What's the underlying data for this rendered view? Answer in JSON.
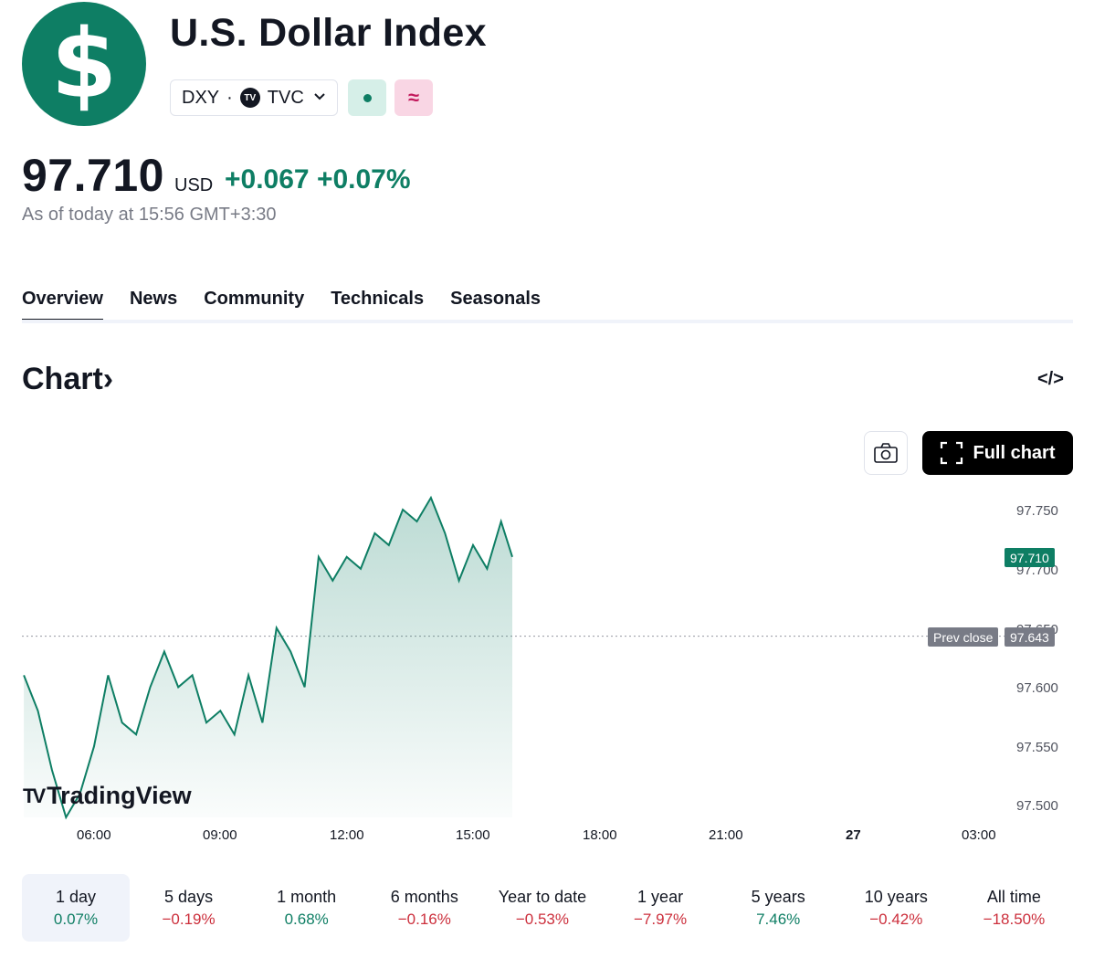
{
  "header": {
    "logo_symbol": "$",
    "title": "U.S. Dollar Index",
    "symbol": "DXY",
    "separator": "·",
    "exchange": "TVC",
    "exchange_logo": "TV",
    "brand_color": "#0e7e64"
  },
  "quote": {
    "price": "97.710",
    "currency": "USD",
    "change": "+0.067",
    "change_pct": "+0.07%",
    "as_of": "As of today at 15:56 GMT+3:30"
  },
  "tabs": [
    "Overview",
    "News",
    "Community",
    "Technicals",
    "Seasonals"
  ],
  "chart_section": {
    "title": "Chart",
    "full_chart_label": "Full chart",
    "watermark": "TradingView",
    "prev_close_label": "Prev close",
    "prev_close_value": "97.643",
    "current_value": "97.710"
  },
  "chart_data": {
    "type": "area",
    "x_labels": [
      "06:00",
      "09:00",
      "12:00",
      "15:00",
      "18:00",
      "21:00",
      "27",
      "03:00"
    ],
    "y_labels": [
      "97.750",
      "97.700",
      "97.650",
      "97.600",
      "97.550",
      "97.500"
    ],
    "ylim": [
      97.49,
      97.77
    ],
    "prev_close": 97.643,
    "line_color": "#0e7e64",
    "series": [
      {
        "x": [
          "04:20",
          "04:40",
          "05:00",
          "05:20",
          "05:40",
          "06:00",
          "06:20",
          "06:40",
          "07:00",
          "07:20",
          "07:40",
          "08:00",
          "08:20",
          "08:40",
          "09:00",
          "09:20",
          "09:40",
          "10:00",
          "10:20",
          "10:40",
          "11:00",
          "11:20",
          "11:40",
          "12:00",
          "12:20",
          "12:40",
          "13:00",
          "13:20",
          "13:40",
          "14:00",
          "14:20",
          "14:40",
          "15:00",
          "15:20",
          "15:40",
          "15:56"
        ],
        "values": [
          97.61,
          97.58,
          97.53,
          97.49,
          97.51,
          97.55,
          97.61,
          97.57,
          97.56,
          97.6,
          97.63,
          97.6,
          97.61,
          97.57,
          97.58,
          97.56,
          97.61,
          97.57,
          97.65,
          97.63,
          97.6,
          97.71,
          97.69,
          97.71,
          97.7,
          97.73,
          97.72,
          97.75,
          97.74,
          97.76,
          97.73,
          97.69,
          97.72,
          97.7,
          97.74,
          97.71
        ]
      }
    ]
  },
  "periods": [
    {
      "label": "1 day",
      "value": "0.07%",
      "dir": "up"
    },
    {
      "label": "5 days",
      "value": "−0.19%",
      "dir": "down"
    },
    {
      "label": "1 month",
      "value": "0.68%",
      "dir": "up"
    },
    {
      "label": "6 months",
      "value": "−0.16%",
      "dir": "down"
    },
    {
      "label": "Year to date",
      "value": "−0.53%",
      "dir": "down"
    },
    {
      "label": "1 year",
      "value": "−7.97%",
      "dir": "down"
    },
    {
      "label": "5 years",
      "value": "7.46%",
      "dir": "up"
    },
    {
      "label": "10 years",
      "value": "−0.42%",
      "dir": "down"
    },
    {
      "label": "All time",
      "value": "−18.50%",
      "dir": "down"
    }
  ]
}
